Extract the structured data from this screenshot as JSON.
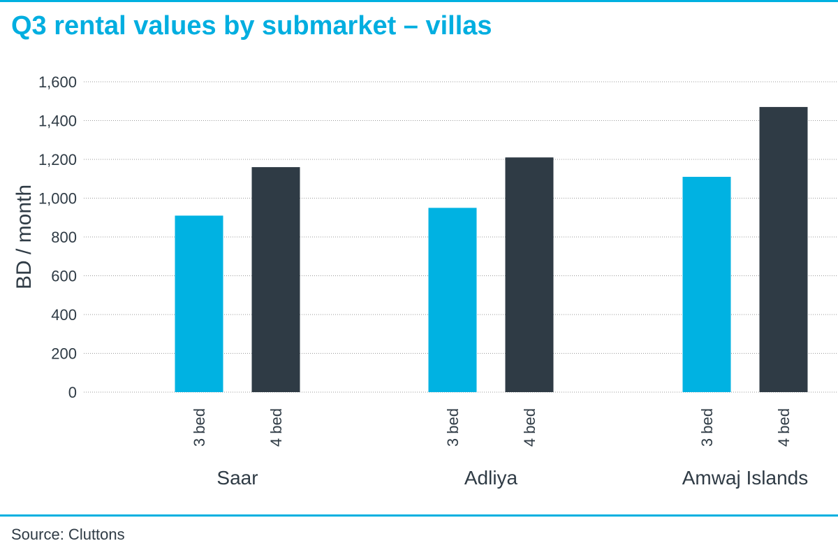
{
  "title": "Q3 rental values by submarket – villas",
  "source": "Source: Cluttons",
  "colors": {
    "accent": "#00b0e0",
    "bar_3bed": "#00b2e2",
    "bar_4bed": "#2f3b45"
  },
  "chart_data": {
    "type": "bar",
    "title": "Q3 rental values by submarket – villas",
    "ylabel": "BD / month",
    "xlabel": "",
    "ylim": [
      0,
      1600
    ],
    "yticks": [
      0,
      200,
      400,
      600,
      800,
      1000,
      1200,
      1400,
      1600
    ],
    "grid": true,
    "groups": [
      {
        "name": "Saar",
        "bars": [
          {
            "label": "3 bed",
            "value": 910
          },
          {
            "label": "4 bed",
            "value": 1160
          }
        ]
      },
      {
        "name": "Adliya",
        "bars": [
          {
            "label": "3 bed",
            "value": 950
          },
          {
            "label": "4 bed",
            "value": 1210
          }
        ]
      },
      {
        "name": "Amwaj Islands",
        "bars": [
          {
            "label": "3 bed",
            "value": 1110
          },
          {
            "label": "4 bed",
            "value": 1470
          }
        ]
      }
    ]
  }
}
